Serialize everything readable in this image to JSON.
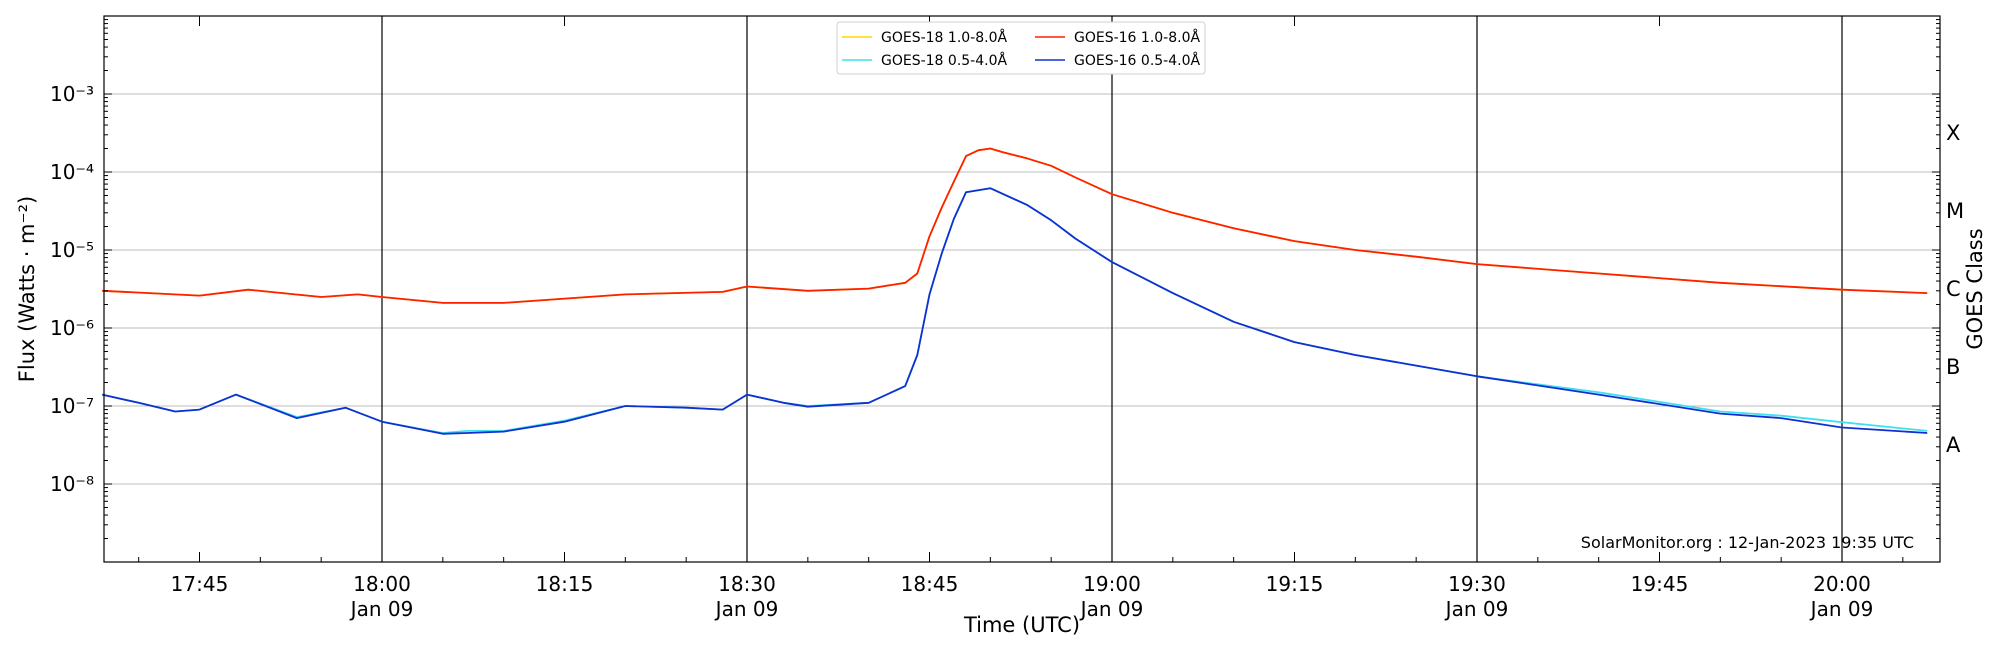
{
  "chart_data": {
    "type": "line",
    "xlabel": "Time (UTC)",
    "ylabel": "Flux (Watts · m⁻²)",
    "ylabel_right": "GOES Class",
    "y_scale": "log",
    "ylim": [
      1e-09,
      0.01
    ],
    "xlim": [
      "2023-01-09 17:37",
      "2023-01-09 20:08"
    ],
    "grid": "horizontal at decades",
    "x_ticks": [
      {
        "time": "17:45",
        "date": ""
      },
      {
        "time": "18:00",
        "date": "Jan 09"
      },
      {
        "time": "18:15",
        "date": ""
      },
      {
        "time": "18:30",
        "date": "Jan 09"
      },
      {
        "time": "18:45",
        "date": ""
      },
      {
        "time": "19:00",
        "date": "Jan 09"
      },
      {
        "time": "19:15",
        "date": ""
      },
      {
        "time": "19:30",
        "date": "Jan 09"
      },
      {
        "time": "19:45",
        "date": ""
      },
      {
        "time": "20:00",
        "date": "Jan 09"
      }
    ],
    "y_ticks": [
      "10⁻⁸",
      "10⁻⁷",
      "10⁻⁶",
      "10⁻⁵",
      "10⁻⁴",
      "10⁻³"
    ],
    "goes_classes": [
      "A",
      "B",
      "C",
      "M",
      "X"
    ],
    "legend_placement": "top-center",
    "annotation": "SolarMonitor.org : 12-Jan-2023 19:35 UTC",
    "series": [
      {
        "name": "GOES-18 1.0-8.0Å",
        "color": "#ffd700",
        "points": [
          [
            "17:37",
            3e-06
          ],
          [
            "17:45",
            2.6e-06
          ],
          [
            "17:49",
            3.1e-06
          ],
          [
            "17:55",
            2.5e-06
          ],
          [
            "17:58",
            2.7e-06
          ],
          [
            "18:00",
            2.5e-06
          ],
          [
            "18:05",
            2.1e-06
          ],
          [
            "18:10",
            2.1e-06
          ],
          [
            "18:20",
            2.7e-06
          ],
          [
            "18:28",
            2.9e-06
          ],
          [
            "18:30",
            3.4e-06
          ],
          [
            "18:35",
            3e-06
          ],
          [
            "18:40",
            3.2e-06
          ],
          [
            "18:43",
            3.8e-06
          ],
          [
            "18:44",
            5e-06
          ],
          [
            "18:45",
            1.5e-05
          ],
          [
            "18:46",
            3.5e-05
          ],
          [
            "18:47",
            7.5e-05
          ],
          [
            "18:48",
            0.00016
          ],
          [
            "18:49",
            0.00019
          ],
          [
            "18:50",
            0.0002
          ],
          [
            "18:51",
            0.00018
          ],
          [
            "18:53",
            0.00015
          ],
          [
            "18:55",
            0.00012
          ],
          [
            "18:57",
            8.5e-05
          ],
          [
            "19:00",
            5.2e-05
          ],
          [
            "19:05",
            3e-05
          ],
          [
            "19:10",
            1.9e-05
          ],
          [
            "19:15",
            1.3e-05
          ],
          [
            "19:20",
            1e-05
          ],
          [
            "19:25",
            8.2e-06
          ],
          [
            "19:30",
            6.6e-06
          ],
          [
            "19:40",
            5e-06
          ],
          [
            "19:50",
            3.8e-06
          ],
          [
            "20:00",
            3.1e-06
          ],
          [
            "20:07",
            2.8e-06
          ]
        ]
      },
      {
        "name": "GOES-18 0.5-4.0Å",
        "color": "#40e0f0",
        "points": [
          [
            "17:37",
            1.4e-07
          ],
          [
            "17:40",
            1.1e-07
          ],
          [
            "17:43",
            8.5e-08
          ],
          [
            "17:45",
            9e-08
          ],
          [
            "17:48",
            1.4e-07
          ],
          [
            "17:53",
            7.2e-08
          ],
          [
            "17:57",
            9.5e-08
          ],
          [
            "18:00",
            6.3e-08
          ],
          [
            "18:05",
            4.5e-08
          ],
          [
            "18:07",
            4.8e-08
          ],
          [
            "18:10",
            4.8e-08
          ],
          [
            "18:15",
            6.5e-08
          ],
          [
            "18:20",
            1e-07
          ],
          [
            "18:25",
            9.5e-08
          ],
          [
            "18:28",
            9e-08
          ],
          [
            "18:30",
            1.4e-07
          ],
          [
            "18:33",
            1.1e-07
          ],
          [
            "18:35",
            1e-07
          ],
          [
            "18:40",
            1.1e-07
          ],
          [
            "18:43",
            1.8e-07
          ],
          [
            "18:44",
            4.5e-07
          ],
          [
            "18:45",
            2.7e-06
          ],
          [
            "18:46",
            9e-06
          ],
          [
            "18:47",
            2.5e-05
          ],
          [
            "18:48",
            5.5e-05
          ],
          [
            "18:50",
            6.2e-05
          ],
          [
            "18:53",
            3.8e-05
          ],
          [
            "18:55",
            2.4e-05
          ],
          [
            "18:57",
            1.4e-05
          ],
          [
            "19:00",
            7e-06
          ],
          [
            "19:05",
            2.8e-06
          ],
          [
            "19:10",
            1.2e-06
          ],
          [
            "19:15",
            6.6e-07
          ],
          [
            "19:20",
            4.5e-07
          ],
          [
            "19:25",
            3.3e-07
          ],
          [
            "19:30",
            2.4e-07
          ],
          [
            "19:40",
            1.5e-07
          ],
          [
            "19:50",
            8.5e-08
          ],
          [
            "19:55",
            7.5e-08
          ],
          [
            "20:00",
            6.2e-08
          ],
          [
            "20:07",
            4.8e-08
          ]
        ]
      },
      {
        "name": "GOES-16 1.0-8.0Å",
        "color": "#ff2000",
        "points": [
          [
            "17:37",
            3e-06
          ],
          [
            "17:45",
            2.6e-06
          ],
          [
            "17:49",
            3.1e-06
          ],
          [
            "17:55",
            2.5e-06
          ],
          [
            "17:58",
            2.7e-06
          ],
          [
            "18:00",
            2.5e-06
          ],
          [
            "18:05",
            2.1e-06
          ],
          [
            "18:10",
            2.1e-06
          ],
          [
            "18:20",
            2.7e-06
          ],
          [
            "18:28",
            2.9e-06
          ],
          [
            "18:30",
            3.4e-06
          ],
          [
            "18:35",
            3e-06
          ],
          [
            "18:40",
            3.2e-06
          ],
          [
            "18:43",
            3.8e-06
          ],
          [
            "18:44",
            5e-06
          ],
          [
            "18:45",
            1.5e-05
          ],
          [
            "18:46",
            3.5e-05
          ],
          [
            "18:47",
            7.5e-05
          ],
          [
            "18:48",
            0.00016
          ],
          [
            "18:49",
            0.00019
          ],
          [
            "18:50",
            0.0002
          ],
          [
            "18:51",
            0.00018
          ],
          [
            "18:53",
            0.00015
          ],
          [
            "18:55",
            0.00012
          ],
          [
            "18:57",
            8.5e-05
          ],
          [
            "19:00",
            5.2e-05
          ],
          [
            "19:05",
            3e-05
          ],
          [
            "19:10",
            1.9e-05
          ],
          [
            "19:15",
            1.3e-05
          ],
          [
            "19:20",
            1e-05
          ],
          [
            "19:25",
            8.2e-06
          ],
          [
            "19:30",
            6.6e-06
          ],
          [
            "19:40",
            5e-06
          ],
          [
            "19:50",
            3.8e-06
          ],
          [
            "20:00",
            3.1e-06
          ],
          [
            "20:07",
            2.8e-06
          ]
        ]
      },
      {
        "name": "GOES-16 0.5-4.0Å",
        "color": "#1030d0",
        "points": [
          [
            "17:37",
            1.4e-07
          ],
          [
            "17:40",
            1.1e-07
          ],
          [
            "17:43",
            8.5e-08
          ],
          [
            "17:45",
            9e-08
          ],
          [
            "17:48",
            1.4e-07
          ],
          [
            "17:53",
            7e-08
          ],
          [
            "17:57",
            9.5e-08
          ],
          [
            "18:00",
            6.3e-08
          ],
          [
            "18:05",
            4.4e-08
          ],
          [
            "18:07",
            4.5e-08
          ],
          [
            "18:10",
            4.7e-08
          ],
          [
            "18:15",
            6.3e-08
          ],
          [
            "18:20",
            1e-07
          ],
          [
            "18:25",
            9.5e-08
          ],
          [
            "18:28",
            9e-08
          ],
          [
            "18:30",
            1.4e-07
          ],
          [
            "18:33",
            1.1e-07
          ],
          [
            "18:35",
            9.8e-08
          ],
          [
            "18:40",
            1.1e-07
          ],
          [
            "18:43",
            1.8e-07
          ],
          [
            "18:44",
            4.5e-07
          ],
          [
            "18:45",
            2.7e-06
          ],
          [
            "18:46",
            9e-06
          ],
          [
            "18:47",
            2.5e-05
          ],
          [
            "18:48",
            5.5e-05
          ],
          [
            "18:50",
            6.2e-05
          ],
          [
            "18:53",
            3.8e-05
          ],
          [
            "18:55",
            2.4e-05
          ],
          [
            "18:57",
            1.4e-05
          ],
          [
            "19:00",
            7e-06
          ],
          [
            "19:05",
            2.8e-06
          ],
          [
            "19:10",
            1.2e-06
          ],
          [
            "19:15",
            6.6e-07
          ],
          [
            "19:20",
            4.5e-07
          ],
          [
            "19:25",
            3.3e-07
          ],
          [
            "19:30",
            2.4e-07
          ],
          [
            "19:40",
            1.4e-07
          ],
          [
            "19:50",
            8e-08
          ],
          [
            "19:55",
            7e-08
          ],
          [
            "20:00",
            5.3e-08
          ],
          [
            "20:07",
            4.5e-08
          ]
        ]
      }
    ]
  }
}
